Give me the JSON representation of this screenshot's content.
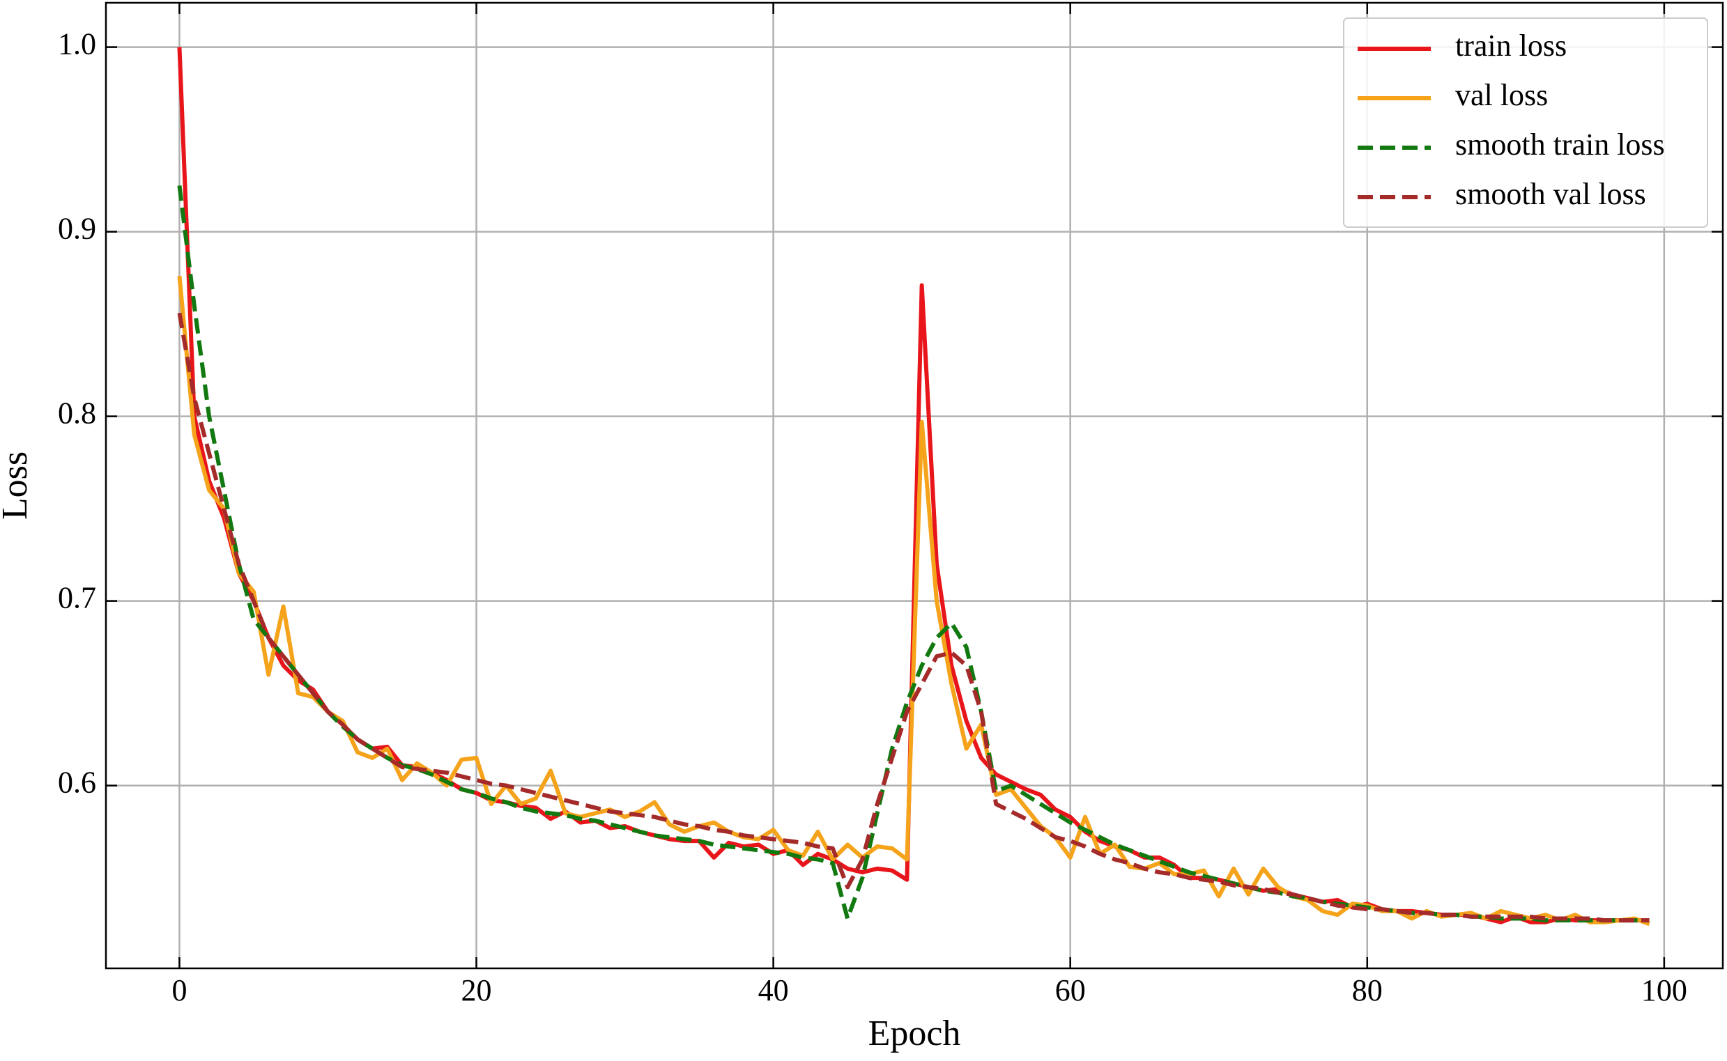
{
  "chart_data": {
    "type": "line",
    "xlabel": "Epoch",
    "ylabel": "Loss",
    "x": [
      0,
      1,
      2,
      3,
      4,
      5,
      6,
      7,
      8,
      9,
      10,
      11,
      12,
      13,
      14,
      15,
      16,
      17,
      18,
      19,
      20,
      21,
      22,
      23,
      24,
      25,
      26,
      27,
      28,
      29,
      30,
      31,
      32,
      33,
      34,
      35,
      36,
      37,
      38,
      39,
      40,
      41,
      42,
      43,
      44,
      45,
      46,
      47,
      48,
      49,
      50,
      51,
      52,
      53,
      54,
      55,
      56,
      57,
      58,
      59,
      60,
      61,
      62,
      63,
      64,
      65,
      66,
      67,
      68,
      69,
      70,
      71,
      72,
      73,
      74,
      75,
      76,
      77,
      78,
      79,
      80,
      81,
      82,
      83,
      84,
      85,
      86,
      87,
      88,
      89,
      90,
      91,
      92,
      93,
      94,
      95,
      96,
      97,
      98,
      99
    ],
    "series": [
      {
        "name": "train loss",
        "color": "#e8151b",
        "dashed": false,
        "values": [
          1.0,
          0.8,
          0.765,
          0.745,
          0.715,
          0.7,
          0.68,
          0.665,
          0.657,
          0.652,
          0.64,
          0.633,
          0.625,
          0.62,
          0.621,
          0.611,
          0.61,
          0.607,
          0.603,
          0.598,
          0.596,
          0.592,
          0.591,
          0.589,
          0.588,
          0.582,
          0.586,
          0.58,
          0.581,
          0.577,
          0.578,
          0.575,
          0.573,
          0.571,
          0.57,
          0.57,
          0.561,
          0.569,
          0.567,
          0.568,
          0.563,
          0.565,
          0.557,
          0.563,
          0.56,
          0.555,
          0.553,
          0.555,
          0.554,
          0.549,
          0.871,
          0.72,
          0.665,
          0.635,
          0.615,
          0.606,
          0.602,
          0.598,
          0.595,
          0.587,
          0.583,
          0.575,
          0.57,
          0.567,
          0.565,
          0.561,
          0.561,
          0.557,
          0.55,
          0.55,
          0.549,
          0.547,
          0.545,
          0.543,
          0.544,
          0.541,
          0.539,
          0.537,
          0.538,
          0.534,
          0.536,
          0.533,
          0.532,
          0.532,
          0.531,
          0.53,
          0.53,
          0.53,
          0.528,
          0.526,
          0.529,
          0.526,
          0.526,
          0.528,
          0.527,
          0.527,
          0.527,
          0.527,
          0.527,
          0.527
        ]
      },
      {
        "name": "val loss",
        "color": "#f5a31a",
        "dashed": false,
        "values": [
          0.876,
          0.79,
          0.76,
          0.75,
          0.715,
          0.705,
          0.66,
          0.697,
          0.65,
          0.648,
          0.64,
          0.635,
          0.618,
          0.615,
          0.62,
          0.603,
          0.612,
          0.607,
          0.6,
          0.614,
          0.615,
          0.59,
          0.6,
          0.59,
          0.593,
          0.608,
          0.585,
          0.583,
          0.585,
          0.587,
          0.583,
          0.586,
          0.591,
          0.579,
          0.575,
          0.578,
          0.58,
          0.575,
          0.572,
          0.571,
          0.576,
          0.565,
          0.562,
          0.575,
          0.56,
          0.568,
          0.561,
          0.567,
          0.566,
          0.56,
          0.797,
          0.7,
          0.655,
          0.62,
          0.633,
          0.595,
          0.598,
          0.588,
          0.578,
          0.572,
          0.561,
          0.583,
          0.563,
          0.568,
          0.556,
          0.555,
          0.558,
          0.552,
          0.552,
          0.554,
          0.54,
          0.555,
          0.541,
          0.555,
          0.545,
          0.54,
          0.538,
          0.532,
          0.53,
          0.536,
          0.535,
          0.532,
          0.532,
          0.528,
          0.532,
          0.529,
          0.53,
          0.531,
          0.528,
          0.532,
          0.53,
          0.528,
          0.53,
          0.527,
          0.53,
          0.526,
          0.526,
          0.527,
          0.528,
          0.525
        ]
      },
      {
        "name": "smooth train loss",
        "color": "#11790f",
        "dashed": true,
        "values": [
          0.925,
          0.86,
          0.8,
          0.76,
          0.72,
          0.69,
          0.68,
          0.67,
          0.66,
          0.65,
          0.64,
          0.632,
          0.625,
          0.62,
          0.615,
          0.611,
          0.609,
          0.606,
          0.602,
          0.598,
          0.596,
          0.593,
          0.591,
          0.588,
          0.586,
          0.585,
          0.584,
          0.582,
          0.581,
          0.579,
          0.577,
          0.575,
          0.573,
          0.572,
          0.571,
          0.57,
          0.568,
          0.567,
          0.566,
          0.565,
          0.564,
          0.563,
          0.561,
          0.56,
          0.558,
          0.528,
          0.55,
          0.585,
          0.62,
          0.645,
          0.665,
          0.68,
          0.688,
          0.675,
          0.64,
          0.597,
          0.6,
          0.595,
          0.59,
          0.585,
          0.58,
          0.576,
          0.572,
          0.568,
          0.565,
          0.562,
          0.559,
          0.556,
          0.553,
          0.551,
          0.549,
          0.547,
          0.545,
          0.543,
          0.542,
          0.54,
          0.539,
          0.537,
          0.536,
          0.535,
          0.534,
          0.533,
          0.532,
          0.531,
          0.531,
          0.53,
          0.53,
          0.529,
          0.529,
          0.528,
          0.528,
          0.528,
          0.527,
          0.527,
          0.527,
          0.527,
          0.527,
          0.527,
          0.527,
          0.527
        ]
      },
      {
        "name": "smooth val loss",
        "color": "#a52a2a",
        "dashed": true,
        "values": [
          0.856,
          0.81,
          0.78,
          0.75,
          0.72,
          0.7,
          0.68,
          0.67,
          0.66,
          0.65,
          0.64,
          0.633,
          0.625,
          0.62,
          0.615,
          0.61,
          0.609,
          0.608,
          0.607,
          0.605,
          0.603,
          0.601,
          0.6,
          0.598,
          0.596,
          0.594,
          0.592,
          0.59,
          0.588,
          0.586,
          0.585,
          0.584,
          0.583,
          0.581,
          0.579,
          0.578,
          0.576,
          0.575,
          0.573,
          0.572,
          0.571,
          0.57,
          0.569,
          0.567,
          0.566,
          0.545,
          0.56,
          0.59,
          0.615,
          0.64,
          0.655,
          0.67,
          0.672,
          0.665,
          0.64,
          0.59,
          0.586,
          0.582,
          0.577,
          0.572,
          0.57,
          0.567,
          0.563,
          0.56,
          0.558,
          0.555,
          0.553,
          0.552,
          0.55,
          0.549,
          0.548,
          0.546,
          0.545,
          0.544,
          0.542,
          0.541,
          0.539,
          0.537,
          0.535,
          0.534,
          0.533,
          0.533,
          0.532,
          0.531,
          0.531,
          0.53,
          0.53,
          0.529,
          0.529,
          0.529,
          0.529,
          0.529,
          0.528,
          0.528,
          0.528,
          0.528,
          0.527,
          0.527,
          0.527,
          0.527
        ]
      }
    ],
    "xlim": [
      -4.95,
      103.95
    ],
    "ylim": [
      0.501,
      1.024
    ],
    "xticks": [
      0,
      20,
      40,
      60,
      80,
      100
    ],
    "yticks": [
      0.6,
      0.7,
      0.8,
      0.9,
      {
        "value": 1,
        "label": "1.0"
      }
    ],
    "grid": true,
    "legend": "upper right"
  }
}
